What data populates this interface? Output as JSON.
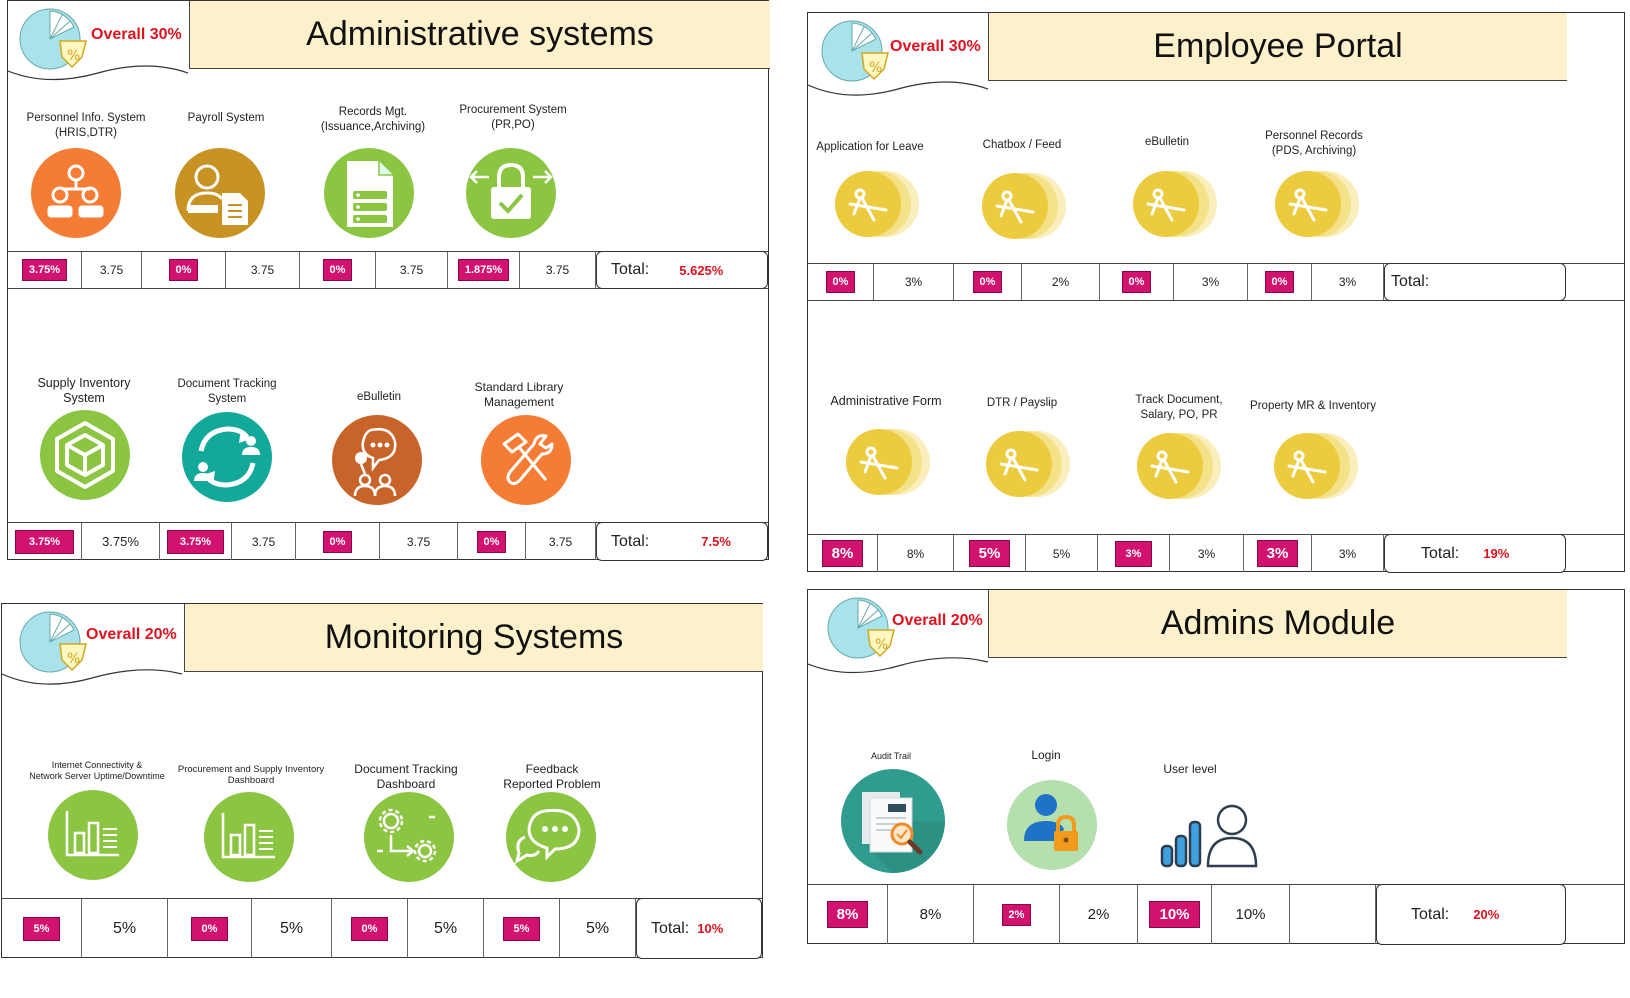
{
  "admin": {
    "overall": "Overall 30%",
    "title": "Administrative systems",
    "row1": {
      "labels": [
        "Personnel Info. System\n(HRIS,DTR)",
        "Payroll System",
        "Records Mgt.\n(Issuance,Archiving)",
        "Procurement System\n(PR,PO)"
      ],
      "pcts": [
        "3.75%",
        "0%",
        "0%",
        "1.875%"
      ],
      "vals": [
        "3.75",
        "3.75",
        "3.75",
        "3.75"
      ],
      "total_label": "Total:",
      "total_value": "5.625%"
    },
    "row2": {
      "labels": [
        "Supply Inventory\nSystem",
        "Document Tracking\nSystem",
        "eBulletin",
        "Standard Library\nManagement"
      ],
      "pcts": [
        "3.75%",
        "3.75%",
        "0%",
        "0%"
      ],
      "vals": [
        "3.75%",
        "3.75",
        "3.75",
        "3.75"
      ],
      "total_label": "Total:",
      "total_value": "7.5%"
    }
  },
  "employee": {
    "overall": "Overall 30%",
    "title": "Employee Portal",
    "row1": {
      "labels": [
        "Application for Leave",
        "Chatbox / Feed",
        "eBulletin",
        "Personnel Records\n(PDS, Archiving)"
      ],
      "pcts": [
        "0%",
        "0%",
        "0%",
        "0%"
      ],
      "vals": [
        "3%",
        "2%",
        "3%",
        "3%"
      ],
      "total_label": "Total:",
      "total_value": ""
    },
    "row2": {
      "labels": [
        "Administrative Form",
        "DTR / Payslip",
        "Track Document,\nSalary, PO, PR",
        "Property MR & Inventory"
      ],
      "pcts": [
        "8%",
        "5%",
        "3%",
        "3%"
      ],
      "vals": [
        "8%",
        "5%",
        "3%",
        "3%"
      ],
      "total_label": "Total:",
      "total_value": "19%"
    }
  },
  "monitoring": {
    "overall": "Overall 20%",
    "title": "Monitoring Systems",
    "labels": [
      "Internet Connectivity &\nNetwork Server Uptime/Downtime",
      "Procurement and Supply Inventory\nDashboard",
      "Document Tracking\nDashboard",
      "Feedback\nReported Problem"
    ],
    "pcts": [
      "5%",
      "0%",
      "0%",
      "5%"
    ],
    "vals": [
      "5%",
      "5%",
      "5%",
      "5%"
    ],
    "total_label": "Total:",
    "total_value": "10%"
  },
  "adminsmod": {
    "overall": "Overall 20%",
    "title": "Admins Module",
    "labels": [
      "Audit Trail",
      "Login",
      "User level"
    ],
    "pcts": [
      "8%",
      "2%",
      "10%"
    ],
    "vals": [
      "8%",
      "2%",
      "10%"
    ],
    "total_label": "Total:",
    "total_value": "20%"
  },
  "icons": {
    "accent_pink": "#d1126e",
    "overall_red": "#e0121f",
    "banner_bg": "#fdf1cc",
    "pie_badge": "pie-chart-percent-icon"
  }
}
